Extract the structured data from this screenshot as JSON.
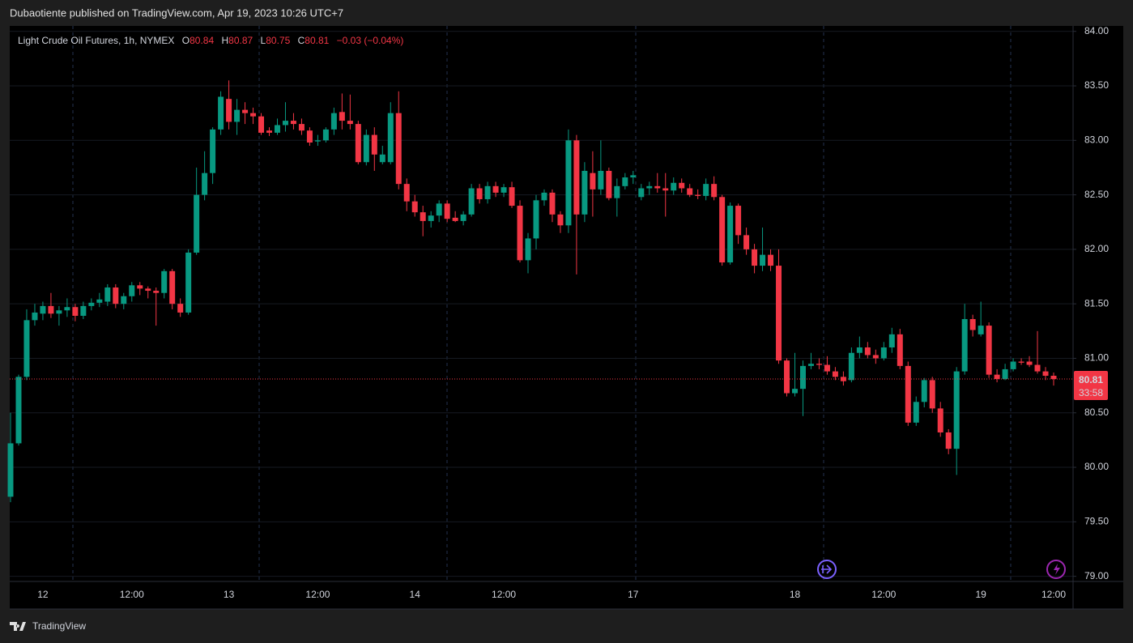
{
  "header": "Dubaotiente published on TradingView.com, Apr 19, 2023 10:26 UTC+7",
  "footer": "TradingView",
  "chart_data": {
    "type": "candlestick",
    "legend": {
      "title": "Light Crude Oil Futures, 1h, NYMEX",
      "labels": [
        "O",
        "H",
        "L",
        "C"
      ],
      "values": [
        80.84,
        80.87,
        80.75,
        80.81
      ],
      "change": "−0.03 (−0.04%)"
    },
    "up_color": "#089981",
    "down_color": "#f23645",
    "last_price": 80.81,
    "countdown": "33:58",
    "ylim": [
      78.7,
      84.05
    ],
    "yticks": [
      {
        "value": 79,
        "label": "79.00"
      },
      {
        "value": 79.5,
        "label": "79.50"
      },
      {
        "value": 80,
        "label": "80.00"
      },
      {
        "value": 80.5,
        "label": "80.50"
      },
      {
        "value": 81,
        "label": "81.00"
      },
      {
        "value": 81.5,
        "label": "81.50"
      },
      {
        "value": 82,
        "label": "82.00"
      },
      {
        "value": 82.5,
        "label": "82.50"
      },
      {
        "value": 83,
        "label": "83.00"
      },
      {
        "value": 83.5,
        "label": "83.50"
      },
      {
        "value": 84,
        "label": "84.00"
      }
    ],
    "grid": true,
    "categories": [
      null,
      null,
      null,
      null,
      "12",
      null,
      null,
      null,
      null,
      null,
      null,
      null,
      null,
      null,
      null,
      "12:00",
      null,
      null,
      null,
      null,
      null,
      null,
      null,
      null,
      null,
      null,
      null,
      "13",
      null,
      null,
      null,
      null,
      null,
      null,
      null,
      null,
      null,
      null,
      "12:00",
      null,
      null,
      null,
      null,
      null,
      null,
      null,
      null,
      null,
      null,
      null,
      "14",
      null,
      null,
      null,
      null,
      null,
      null,
      null,
      null,
      null,
      null,
      "12:00",
      null,
      null,
      null,
      null,
      null,
      null,
      null,
      null,
      null,
      null,
      null,
      null,
      null,
      null,
      null,
      "17",
      null,
      null,
      null,
      null,
      null,
      null,
      null,
      null,
      null,
      null,
      null,
      null,
      null,
      null,
      null,
      null,
      null,
      null,
      null,
      "18",
      null,
      null,
      null,
      null,
      null,
      null,
      null,
      null,
      null,
      null,
      "12:00",
      null,
      null,
      null,
      null,
      null,
      null,
      null,
      null,
      null,
      null,
      null,
      "19",
      null,
      null,
      null,
      null,
      null,
      null,
      null,
      null,
      "12:00"
    ],
    "open": [
      79.73,
      80.22,
      80.83,
      81.35,
      81.41,
      81.48,
      81.41,
      81.44,
      81.47,
      81.39,
      81.48,
      81.51,
      81.52,
      81.65,
      81.5,
      81.57,
      81.67,
      81.64,
      81.62,
      81.6,
      81.8,
      81.5,
      81.42,
      81.97,
      82.5,
      82.7,
      83.1,
      83.38,
      83.17,
      83.28,
      83.25,
      83.22,
      83.09,
      83.07,
      83.14,
      83.18,
      83.15,
      83.09,
      82.99,
      83.0,
      83.1,
      83.26,
      83.18,
      83.15,
      82.8,
      83.05,
      82.8,
      82.8,
      83.25,
      82.6,
      82.44,
      82.34,
      82.26,
      82.31,
      82.42,
      82.29,
      82.26,
      82.32,
      82.56,
      82.46,
      82.58,
      82.52,
      82.57,
      82.4,
      81.9,
      82.1,
      82.45,
      82.52,
      82.32,
      82.22,
      83.0,
      82.32,
      82.7,
      82.55,
      82.72,
      82.47,
      82.58,
      82.66,
      82.48,
      82.56,
      82.58,
      82.56,
      82.54,
      82.61,
      82.56,
      82.5,
      82.49,
      82.6,
      82.48,
      81.88,
      82.4,
      82.13,
      82.0,
      81.85,
      81.95,
      81.85,
      80.98,
      80.68,
      80.72,
      80.93,
      80.95,
      80.94,
      80.88,
      80.83,
      80.8,
      81.05,
      81.1,
      81.03,
      81.0,
      81.1,
      81.22,
      80.93,
      80.41,
      80.6,
      80.8,
      80.54,
      80.32,
      80.17,
      80.88,
      81.36,
      81.22,
      81.3,
      80.85,
      80.81,
      80.9,
      80.97,
      80.97,
      80.94,
      80.88,
      80.84
    ],
    "high": [
      80.5,
      80.85,
      81.45,
      81.5,
      81.52,
      81.6,
      81.48,
      81.55,
      81.5,
      81.52,
      81.55,
      81.6,
      81.68,
      81.68,
      81.6,
      81.7,
      81.7,
      81.66,
      81.65,
      81.82,
      81.82,
      81.55,
      82.0,
      82.75,
      82.9,
      83.12,
      83.45,
      83.55,
      83.38,
      83.35,
      83.3,
      83.25,
      83.12,
      83.2,
      83.35,
      83.25,
      83.2,
      83.12,
      83.05,
      83.12,
      83.3,
      83.43,
      83.42,
      83.18,
      83.1,
      83.12,
      82.95,
      83.35,
      83.45,
      82.65,
      82.5,
      82.4,
      82.35,
      82.45,
      82.45,
      82.35,
      82.35,
      82.6,
      82.6,
      82.62,
      82.62,
      82.6,
      82.62,
      82.45,
      82.15,
      82.5,
      82.55,
      82.55,
      82.35,
      83.1,
      83.05,
      82.8,
      82.9,
      83.0,
      82.75,
      82.65,
      82.7,
      82.72,
      82.6,
      82.62,
      82.7,
      82.7,
      82.66,
      82.65,
      82.6,
      82.55,
      82.65,
      82.67,
      82.5,
      82.43,
      82.42,
      82.2,
      82.05,
      82.2,
      82.0,
      82.0,
      81.0,
      81.05,
      80.98,
      81.05,
      81.0,
      81.02,
      80.92,
      80.88,
      81.1,
      81.2,
      81.15,
      81.08,
      81.15,
      81.28,
      81.27,
      80.97,
      80.65,
      80.82,
      80.83,
      80.6,
      80.35,
      80.92,
      81.5,
      81.4,
      81.52,
      81.33,
      80.9,
      80.95,
      81.0,
      81.0,
      81.02,
      81.25,
      80.92,
      80.87
    ],
    "low": [
      79.68,
      80.2,
      80.8,
      81.3,
      81.35,
      81.37,
      81.3,
      81.38,
      81.34,
      81.36,
      81.44,
      81.47,
      81.48,
      81.46,
      81.45,
      81.52,
      81.58,
      81.55,
      81.3,
      81.55,
      81.45,
      81.38,
      81.4,
      81.95,
      82.45,
      82.6,
      83.05,
      83.1,
      83.05,
      83.15,
      83.15,
      83.05,
      83.04,
      83.05,
      83.08,
      83.1,
      83.05,
      82.95,
      82.95,
      82.98,
      83.05,
      83.1,
      83.1,
      82.78,
      82.77,
      82.72,
      82.78,
      82.78,
      82.55,
      82.35,
      82.3,
      82.12,
      82.2,
      82.25,
      82.25,
      82.25,
      82.22,
      82.3,
      82.42,
      82.42,
      82.48,
      82.48,
      82.38,
      81.88,
      81.78,
      82.0,
      82.4,
      82.25,
      82.15,
      82.15,
      81.77,
      82.25,
      82.3,
      82.5,
      82.45,
      82.3,
      82.55,
      82.6,
      82.45,
      82.5,
      82.52,
      82.3,
      82.5,
      82.52,
      82.48,
      82.46,
      82.45,
      82.45,
      81.85,
      81.86,
      82.05,
      81.95,
      81.78,
      81.8,
      81.8,
      80.95,
      80.65,
      80.65,
      80.47,
      80.9,
      80.9,
      80.85,
      80.8,
      80.75,
      80.78,
      81.0,
      81.0,
      80.95,
      80.98,
      81.05,
      80.9,
      80.38,
      80.38,
      80.55,
      80.5,
      80.28,
      80.12,
      79.93,
      80.85,
      81.2,
      81.2,
      80.82,
      80.78,
      80.8,
      80.88,
      80.94,
      80.92,
      80.86,
      80.8,
      80.75
    ],
    "close": [
      80.22,
      80.83,
      81.35,
      81.42,
      81.48,
      81.41,
      81.44,
      81.47,
      81.39,
      81.48,
      81.51,
      81.54,
      81.65,
      81.5,
      81.57,
      81.67,
      81.64,
      81.62,
      81.6,
      81.8,
      81.5,
      81.42,
      81.97,
      82.5,
      82.7,
      83.1,
      83.4,
      83.17,
      83.28,
      83.25,
      83.22,
      83.07,
      83.07,
      83.14,
      83.18,
      83.15,
      83.09,
      82.98,
      83.0,
      83.1,
      83.25,
      83.18,
      83.15,
      82.8,
      83.05,
      82.87,
      82.87,
      83.25,
      82.6,
      82.44,
      82.34,
      82.26,
      82.31,
      82.42,
      82.28,
      82.26,
      82.32,
      82.56,
      82.46,
      82.58,
      82.52,
      82.57,
      82.4,
      81.9,
      82.1,
      82.45,
      82.52,
      82.32,
      82.22,
      83.0,
      82.32,
      82.72,
      82.55,
      82.72,
      82.47,
      82.58,
      82.66,
      82.68,
      82.56,
      82.58,
      82.56,
      82.54,
      82.61,
      82.56,
      82.5,
      82.49,
      82.6,
      82.48,
      81.88,
      82.4,
      82.13,
      82.0,
      81.85,
      81.95,
      81.85,
      80.98,
      80.68,
      80.72,
      80.93,
      80.95,
      80.94,
      80.88,
      80.83,
      80.79,
      81.05,
      81.1,
      81.03,
      81.0,
      81.1,
      81.22,
      80.93,
      80.41,
      80.6,
      80.8,
      80.54,
      80.32,
      80.17,
      80.88,
      81.36,
      81.26,
      81.3,
      80.85,
      80.81,
      80.9,
      80.97,
      80.96,
      80.94,
      80.88,
      80.84,
      80.81
    ]
  }
}
